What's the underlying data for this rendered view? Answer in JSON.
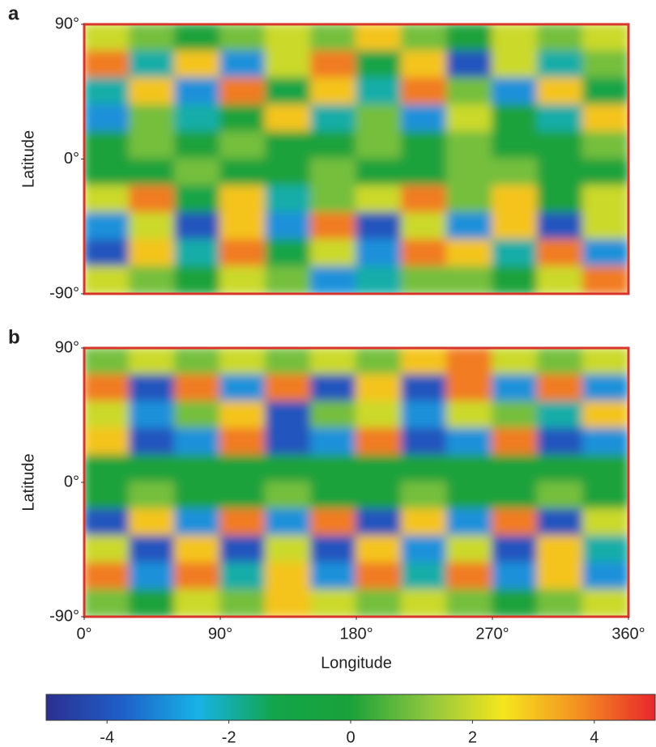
{
  "chart_data": [
    {
      "type": "heatmap",
      "label": "a",
      "ylabel": "Latitude",
      "xlim": [
        0,
        360
      ],
      "ylim": [
        -90,
        90
      ],
      "yticks": [
        {
          "value": 90,
          "label": "90°"
        },
        {
          "value": 0,
          "label": "0°"
        },
        {
          "value": -90,
          "label": "-90°"
        }
      ],
      "values": [
        [
          2,
          1,
          0,
          1,
          2,
          1,
          3,
          1,
          0,
          2,
          1,
          2
        ],
        [
          4,
          -2,
          3,
          -3,
          2,
          4,
          -1,
          3,
          -4,
          2,
          -2,
          1
        ],
        [
          -2,
          3,
          -3,
          4,
          -1,
          3,
          -2,
          4,
          1,
          -3,
          3,
          -1
        ],
        [
          -3,
          1,
          -2,
          0,
          3,
          -2,
          1,
          -3,
          2,
          0,
          -2,
          3
        ],
        [
          0,
          1,
          0,
          1,
          0,
          0,
          1,
          0,
          1,
          0,
          0,
          1
        ],
        [
          0,
          0,
          1,
          0,
          0,
          1,
          0,
          0,
          1,
          1,
          0,
          0
        ],
        [
          2,
          4,
          -1,
          3,
          -2,
          1,
          2,
          4,
          1,
          3,
          0,
          2
        ],
        [
          -3,
          2,
          -4,
          3,
          -3,
          4,
          -4,
          2,
          -3,
          3,
          -4,
          2
        ],
        [
          -4,
          3,
          -2,
          4,
          -1,
          2,
          -3,
          4,
          3,
          -2,
          4,
          -3
        ],
        [
          2,
          1,
          0,
          2,
          1,
          -3,
          -2,
          1,
          1,
          0,
          2,
          4
        ]
      ]
    },
    {
      "type": "heatmap",
      "label": "b",
      "ylabel": "Latitude",
      "xlabel": "Longitude",
      "xlim": [
        0,
        360
      ],
      "ylim": [
        -90,
        90
      ],
      "yticks": [
        {
          "value": 90,
          "label": "90°"
        },
        {
          "value": 0,
          "label": "0°"
        },
        {
          "value": -90,
          "label": "-90°"
        }
      ],
      "xticks": [
        {
          "value": 0,
          "label": "0°"
        },
        {
          "value": 90,
          "label": "90°"
        },
        {
          "value": 180,
          "label": "180°"
        },
        {
          "value": 270,
          "label": "270°"
        },
        {
          "value": 360,
          "label": "360°"
        }
      ],
      "values": [
        [
          1,
          2,
          1,
          2,
          1,
          2,
          1,
          3,
          4,
          2,
          1,
          2
        ],
        [
          4,
          -4,
          4,
          -3,
          4,
          -4,
          3,
          -4,
          4,
          -3,
          4,
          -3
        ],
        [
          2,
          -3,
          1,
          3,
          -4,
          1,
          2,
          -3,
          2,
          1,
          -2,
          3
        ],
        [
          3,
          -4,
          -3,
          4,
          -4,
          -3,
          4,
          -4,
          -3,
          4,
          -4,
          -3
        ],
        [
          0,
          0,
          0,
          0,
          0,
          0,
          0,
          0,
          0,
          0,
          0,
          0
        ],
        [
          0,
          1,
          0,
          0,
          1,
          0,
          0,
          1,
          0,
          0,
          1,
          0
        ],
        [
          -4,
          3,
          -3,
          4,
          -3,
          4,
          -4,
          3,
          -3,
          4,
          -4,
          2
        ],
        [
          2,
          -4,
          3,
          -4,
          2,
          -4,
          3,
          -3,
          2,
          -4,
          3,
          -2
        ],
        [
          4,
          -3,
          4,
          -2,
          3,
          -3,
          4,
          -2,
          4,
          -3,
          3,
          -3
        ],
        [
          1,
          0,
          2,
          1,
          3,
          2,
          1,
          2,
          1,
          0,
          1,
          2
        ]
      ]
    }
  ],
  "colorbar": {
    "clim": [
      -5,
      5
    ],
    "ticks": [
      -4,
      -2,
      0,
      2,
      4
    ],
    "colors": [
      "#2b2f8f",
      "#1f5fc8",
      "#17b3e6",
      "#12a54a",
      "#1aa23a",
      "#8cc63f",
      "#f5e61e",
      "#f39021",
      "#e8262a"
    ]
  }
}
